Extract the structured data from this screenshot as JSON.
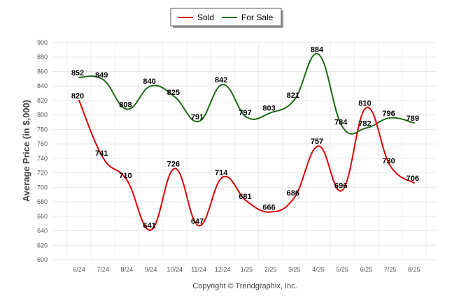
{
  "chart_data": {
    "type": "line",
    "categories": [
      "6/24",
      "7/24",
      "8/24",
      "9/24",
      "10/24",
      "11/24",
      "12/24",
      "1/25",
      "2/25",
      "3/25",
      "4/25",
      "5/25",
      "6/25",
      "7/25",
      "8/25"
    ],
    "series": [
      {
        "name": "Sold",
        "color": "#e00000",
        "values": [
          820,
          741,
          710,
          641,
          726,
          647,
          714,
          681,
          666,
          686,
          757,
          696,
          810,
          730,
          706
        ]
      },
      {
        "name": "For Sale",
        "color": "#1a6b12",
        "values": [
          852,
          849,
          808,
          840,
          825,
          791,
          842,
          797,
          803,
          821,
          884,
          784,
          782,
          796,
          789
        ]
      }
    ],
    "ylabel": "Average Price (in $,000)",
    "xlabel": "",
    "ylim": [
      600,
      900
    ],
    "yticks": [
      600,
      620,
      640,
      660,
      680,
      700,
      720,
      740,
      760,
      780,
      800,
      820,
      840,
      860,
      880,
      900
    ],
    "grid": true,
    "legend_position": "top-center",
    "data_labels": true
  },
  "copyright": "Copyright © Trendgraphix, Inc."
}
